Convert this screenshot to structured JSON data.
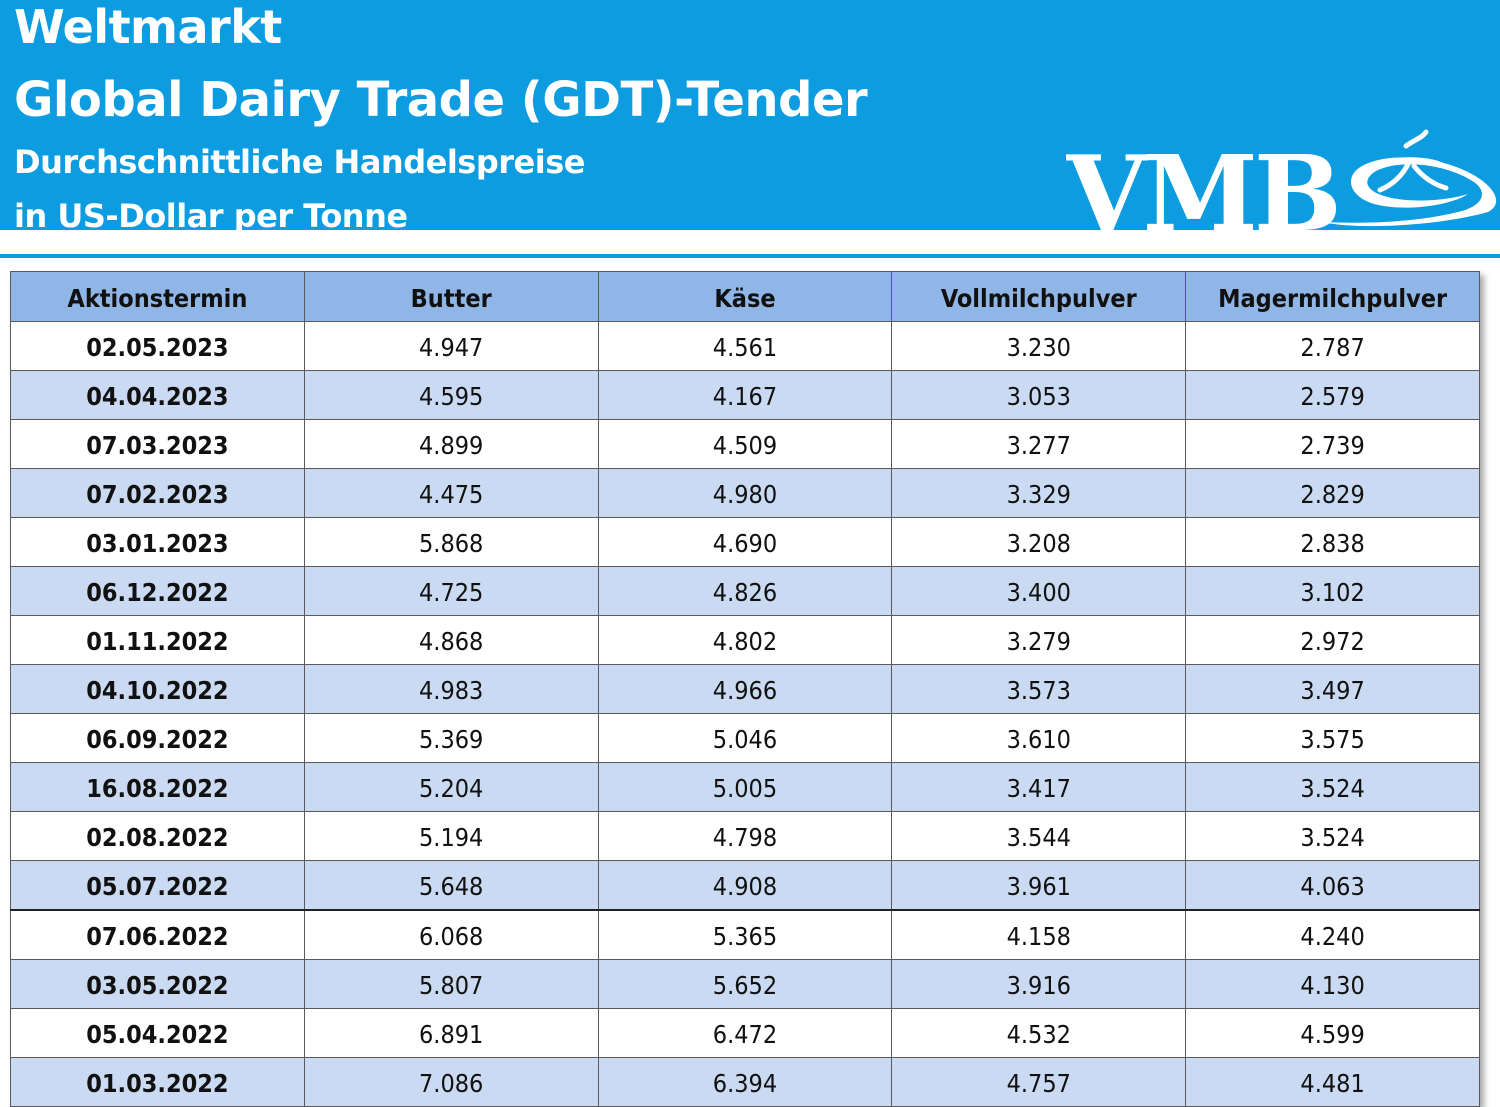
{
  "header": {
    "line1": "Weltmarkt",
    "line2": "Global Dairy Trade (GDT)-Tender",
    "line3": "Durchschnittliche Handelspreise",
    "line4": "in US-Dollar per Tonne",
    "logo_text": "VMB",
    "banner_color": "#0d9ce0"
  },
  "table": {
    "columns": [
      "Aktionstermin",
      "Butter",
      "Käse",
      "Vollmilchpulver",
      "Magermilchpulver"
    ],
    "header_color": "#8fb6e6",
    "alt_row_color": "#c9daf2",
    "rows": [
      [
        "02.05.2023",
        "4.947",
        "4.561",
        "3.230",
        "2.787"
      ],
      [
        "04.04.2023",
        "4.595",
        "4.167",
        "3.053",
        "2.579"
      ],
      [
        "07.03.2023",
        "4.899",
        "4.509",
        "3.277",
        "2.739"
      ],
      [
        "07.02.2023",
        "4.475",
        "4.980",
        "3.329",
        "2.829"
      ],
      [
        "03.01.2023",
        "5.868",
        "4.690",
        "3.208",
        "2.838"
      ],
      [
        "06.12.2022",
        "4.725",
        "4.826",
        "3.400",
        "3.102"
      ],
      [
        "01.11.2022",
        "4.868",
        "4.802",
        "3.279",
        "2.972"
      ],
      [
        "04.10.2022",
        "4.983",
        "4.966",
        "3.573",
        "3.497"
      ],
      [
        "06.09.2022",
        "5.369",
        "5.046",
        "3.610",
        "3.575"
      ],
      [
        "16.08.2022",
        "5.204",
        "5.005",
        "3.417",
        "3.524"
      ],
      [
        "02.08.2022",
        "5.194",
        "4.798",
        "3.544",
        "3.524"
      ],
      [
        "05.07.2022",
        "5.648",
        "4.908",
        "3.961",
        "4.063"
      ],
      [
        "07.06.2022",
        "6.068",
        "5.365",
        "4.158",
        "4.240"
      ],
      [
        "03.05.2022",
        "5.807",
        "5.652",
        "3.916",
        "4.130"
      ],
      [
        "05.04.2022",
        "6.891",
        "6.472",
        "4.532",
        "4.599"
      ],
      [
        "01.03.2022",
        "7.086",
        "6.394",
        "4.757",
        "4.481"
      ]
    ]
  }
}
